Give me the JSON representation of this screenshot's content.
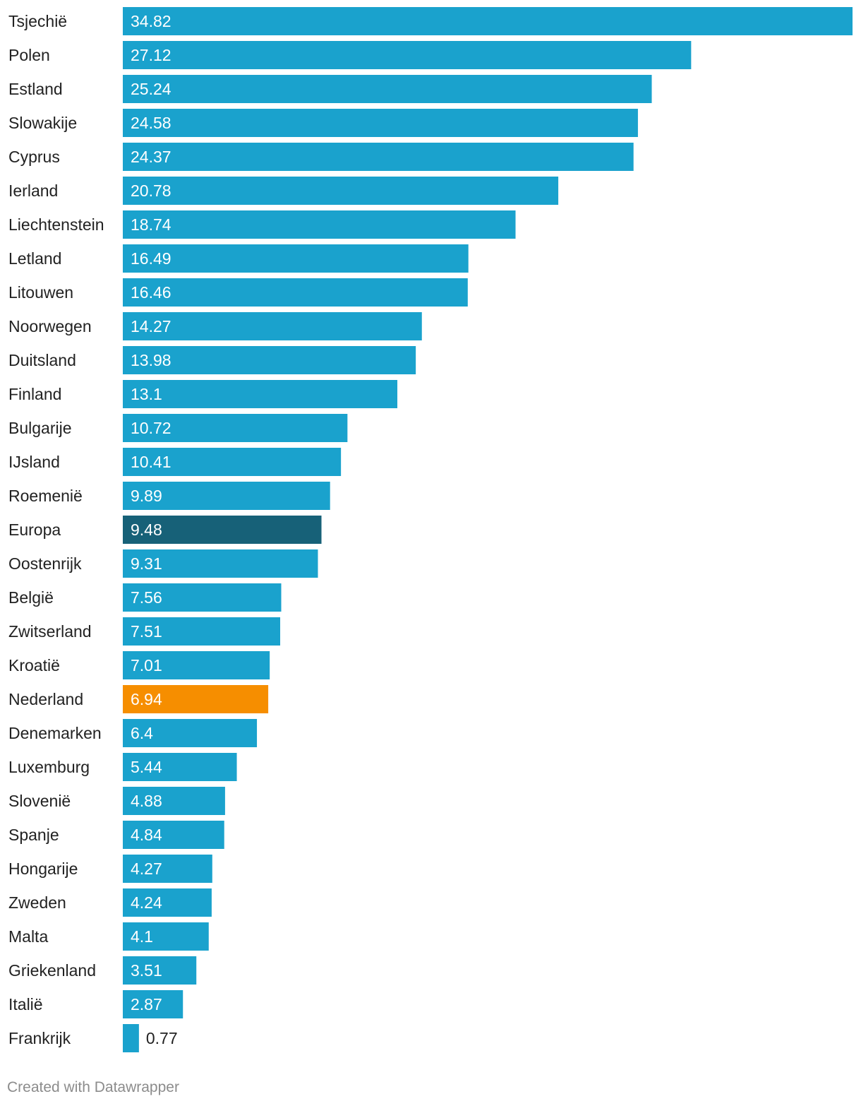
{
  "chart_data": {
    "type": "bar",
    "orientation": "horizontal",
    "title": "",
    "xlabel": "",
    "ylabel": "",
    "xlim": [
      0,
      34.82
    ],
    "grid": false,
    "colors": {
      "default": "#1aa2cd",
      "europa": "#176178",
      "nederland": "#f68e00",
      "label_inside": "#ffffff",
      "label_outside": "#222222",
      "category_text": "#222222"
    },
    "highlights": {
      "Europa": "europa",
      "Nederland": "nederland"
    },
    "categories": [
      "Tsjechië",
      "Polen",
      "Estland",
      "Slowakije",
      "Cyprus",
      "Ierland",
      "Liechtenstein",
      "Letland",
      "Litouwen",
      "Noorwegen",
      "Duitsland",
      "Finland",
      "Bulgarije",
      "IJsland",
      "Roemenië",
      "Europa",
      "Oostenrijk",
      "België",
      "Zwitserland",
      "Kroatië",
      "Nederland",
      "Denemarken",
      "Luxemburg",
      "Slovenië",
      "Spanje",
      "Hongarije",
      "Zweden",
      "Malta",
      "Griekenland",
      "Italië",
      "Frankrijk"
    ],
    "values": [
      34.82,
      27.12,
      25.24,
      24.58,
      24.37,
      20.78,
      18.74,
      16.49,
      16.46,
      14.27,
      13.98,
      13.1,
      10.72,
      10.41,
      9.89,
      9.48,
      9.31,
      7.56,
      7.51,
      7.01,
      6.94,
      6.4,
      5.44,
      4.88,
      4.84,
      4.27,
      4.24,
      4.1,
      3.51,
      2.87,
      0.77
    ],
    "value_labels": [
      "34.82",
      "27.12",
      "25.24",
      "24.58",
      "24.37",
      "20.78",
      "18.74",
      "16.49",
      "16.46",
      "14.27",
      "13.98",
      "13.1",
      "10.72",
      "10.41",
      "9.89",
      "9.48",
      "9.31",
      "7.56",
      "7.51",
      "7.01",
      "6.94",
      "6.4",
      "5.44",
      "4.88",
      "4.84",
      "4.27",
      "4.24",
      "4.1",
      "3.51",
      "2.87",
      "0.77"
    ]
  },
  "footer": {
    "credit": "Created with Datawrapper"
  }
}
